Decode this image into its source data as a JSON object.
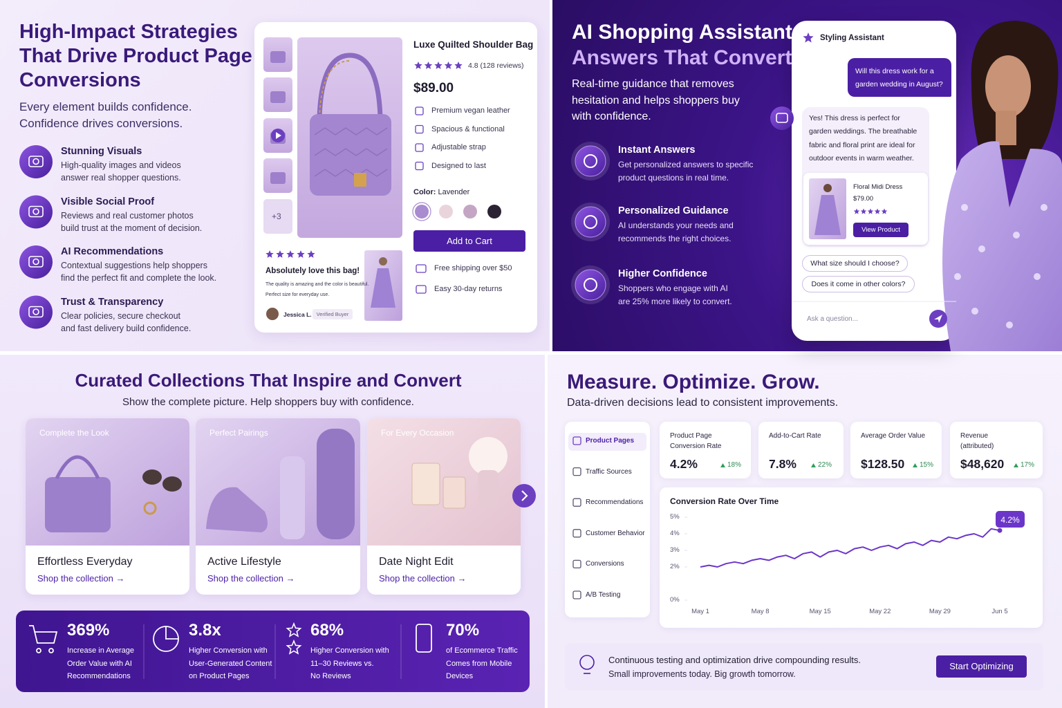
{
  "strategies": {
    "title_lines": [
      "High-Impact Strategies",
      "That Drive Product Page",
      "Conversions"
    ],
    "subtitle_lines": [
      "Every element builds confidence.",
      "Confidence drives conversions."
    ],
    "features": [
      {
        "title": "Stunning Visuals",
        "lines": [
          "High-quality images and videos",
          "answer real shopper questions."
        ]
      },
      {
        "title": "Visible Social Proof",
        "lines": [
          "Reviews and real customer photos",
          "build trust at the moment of decision."
        ]
      },
      {
        "title": "AI Recommendations",
        "lines": [
          "Contextual suggestions help shoppers",
          "find the perfect fit and complete the look."
        ]
      },
      {
        "title": "Trust & Transparency",
        "lines": [
          "Clear policies, secure checkout",
          "and fast delivery build confidence."
        ]
      }
    ],
    "product": {
      "name": "Luxe Quilted Shoulder Bag",
      "rating": "4.8 (128 reviews)",
      "price": "$89.00",
      "highlights": [
        "Premium vegan leather",
        "Spacious & functional",
        "Adjustable strap",
        "Designed to last"
      ],
      "color_label": "Color:",
      "color_name": "Lavender",
      "swatches": [
        "#a98bd0",
        "#ead4dc",
        "#c4a6c4",
        "#2b2233"
      ],
      "button": "Add to Cart",
      "perks": [
        "Free shipping over $50",
        "Easy 30-day returns"
      ],
      "more_thumbs": "+3",
      "review": {
        "title": "Absolutely love this bag!",
        "lines": [
          "The quality is amazing and the color is beautiful.",
          "Perfect size for everyday use."
        ],
        "author": "Jessica L.",
        "badge": "Verified Buyer"
      }
    }
  },
  "assistant": {
    "title_lines": [
      "AI Shopping Assistant",
      "Answers That Convert"
    ],
    "description_lines": [
      "Real-time guidance that removes",
      "hesitation and helps shoppers buy",
      "with confidence."
    ],
    "features": [
      {
        "title": "Instant Answers",
        "lines": [
          "Get personalized answers to specific",
          "product questions in real time."
        ]
      },
      {
        "title": "Personalized Guidance",
        "lines": [
          "AI understands your needs and",
          "recommends the right choices."
        ]
      },
      {
        "title": "Higher Confidence",
        "lines": [
          "Shoppers who engage with AI",
          "are 25% more likely to convert."
        ]
      }
    ],
    "chat": {
      "header": "Styling Assistant",
      "user_lines": [
        "Will this dress work for a",
        "garden wedding in August?"
      ],
      "bot_lines": [
        "Yes! This dress is perfect for",
        "garden weddings. The breathable",
        "fabric and floral print are ideal for",
        "outdoor events in warm weather."
      ],
      "product": {
        "name": "Floral Midi Dress",
        "price": "$79.00",
        "button": "View Product"
      },
      "suggestions": [
        "What size should I choose?",
        "Does it come in other colors?"
      ],
      "placeholder": "Ask a question..."
    }
  },
  "collections": {
    "title": "Curated Collections That Inspire and Convert",
    "subtitle": "Show the complete picture. Help shoppers buy with confidence.",
    "cards": [
      {
        "badge": "Complete the Look",
        "title": "Effortless Everyday",
        "link": "Shop the collection →"
      },
      {
        "badge": "Perfect Pairings",
        "title": "Active Lifestyle",
        "link": "Shop the collection →"
      },
      {
        "badge": "For Every Occasion",
        "title": "Date Night Edit",
        "link": "Shop the collection →"
      }
    ],
    "stats": [
      {
        "value": "369%",
        "lines": [
          "Increase in Average",
          "Order Value with AI",
          "Recommendations"
        ]
      },
      {
        "value": "3.8x",
        "lines": [
          "Higher Conversion with",
          "User-Generated Content",
          "on Product Pages"
        ]
      },
      {
        "value": "68%",
        "lines": [
          "Higher Conversion with",
          "11–30 Reviews vs.",
          "No Reviews"
        ]
      },
      {
        "value": "70%",
        "lines": [
          "of Ecommerce Traffic",
          "Comes from Mobile",
          "Devices"
        ]
      }
    ]
  },
  "measure": {
    "title": "Measure. Optimize. Grow.",
    "subtitle": "Data-driven decisions lead to consistent improvements.",
    "nav": [
      "Product Pages",
      "Traffic Sources",
      "Recommendations",
      "Customer Behavior",
      "Conversions",
      "A/B Testing"
    ],
    "kpis": [
      {
        "label_lines": [
          "Product Page",
          "Conversion Rate"
        ],
        "value": "4.2%",
        "change": "18%"
      },
      {
        "label_lines": [
          "Add-to-Cart Rate"
        ],
        "value": "7.8%",
        "change": "22%"
      },
      {
        "label_lines": [
          "Average Order Value"
        ],
        "value": "$128.50",
        "change": "15%"
      },
      {
        "label_lines": [
          "Revenue",
          "(attributed)"
        ],
        "value": "$48,620",
        "change": "17%"
      }
    ],
    "footer": {
      "lines": [
        "Continuous testing and optimization drive compounding results.",
        "Small improvements today. Big growth tomorrow."
      ],
      "button": "Start Optimizing"
    }
  },
  "chart_data": {
    "type": "line",
    "title": "Conversion Rate Over Time",
    "categories": [
      "May 1",
      null,
      null,
      null,
      null,
      null,
      null,
      "May 8",
      null,
      null,
      null,
      null,
      null,
      null,
      "May 15",
      null,
      null,
      null,
      null,
      null,
      null,
      "May 22",
      null,
      null,
      null,
      null,
      null,
      null,
      "May 29",
      null,
      null,
      null,
      null,
      null,
      null,
      "Jun 5"
    ],
    "values": [
      2.0,
      2.1,
      2.0,
      2.2,
      2.3,
      2.2,
      2.4,
      2.5,
      2.4,
      2.6,
      2.7,
      2.5,
      2.8,
      2.9,
      2.6,
      2.9,
      3.0,
      2.8,
      3.1,
      3.2,
      3.0,
      3.2,
      3.3,
      3.1,
      3.4,
      3.5,
      3.3,
      3.6,
      3.5,
      3.8,
      3.7,
      3.9,
      4.0,
      3.8,
      4.3,
      4.2
    ],
    "value_labels": [
      null,
      null,
      null,
      null,
      null,
      null,
      null,
      null,
      null,
      null,
      null,
      null,
      null,
      null,
      null,
      null,
      null,
      null,
      null,
      null,
      null,
      null,
      null,
      null,
      null,
      null,
      null,
      null,
      null,
      null,
      null,
      null,
      null,
      null,
      null,
      "4.2%"
    ],
    "color": "#6b35c9",
    "ylim": [
      0,
      5
    ],
    "yticks": [
      {
        "value": 0,
        "label": "0%"
      },
      {
        "value": 2,
        "label": "2%"
      },
      {
        "value": 3,
        "label": "3%"
      },
      {
        "value": 4,
        "label": "4%"
      },
      {
        "value": 5,
        "label": "5%"
      }
    ]
  }
}
